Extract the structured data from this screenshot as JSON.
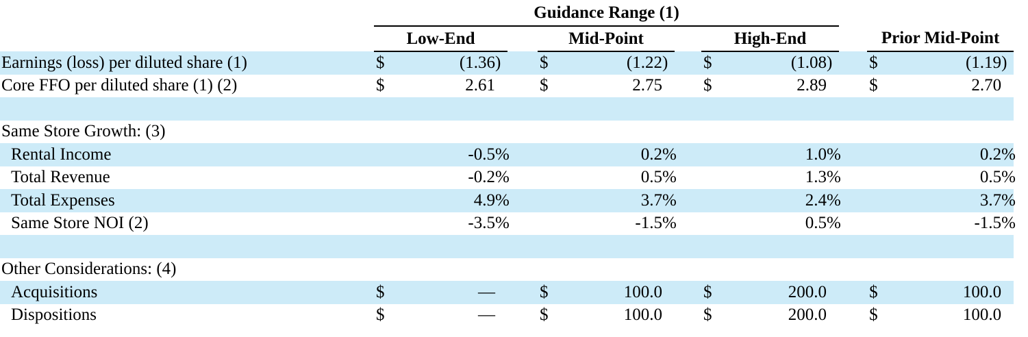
{
  "colors": {
    "row_shade": "#CDEBF8",
    "text": "#000000",
    "rule": "#000000"
  },
  "table": {
    "header": {
      "group_title": "Guidance Range (1)",
      "columns": [
        "Low-End",
        "Mid-Point",
        "High-End",
        "Prior Mid-Point"
      ]
    },
    "rows": [
      {
        "label": "Earnings (loss) per diluted share (1)",
        "indent": false,
        "shaded": true,
        "cells": [
          {
            "sym": "$",
            "num": "(1.36",
            "suf": ")"
          },
          {
            "sym": "$",
            "num": "(1.22",
            "suf": ")"
          },
          {
            "sym": "$",
            "num": "(1.08",
            "suf": ")"
          },
          {
            "sym": "$",
            "num": "(1.19",
            "suf": ")"
          }
        ]
      },
      {
        "label": "Core FFO per diluted share (1) (2)",
        "indent": false,
        "shaded": false,
        "cells": [
          {
            "sym": "$",
            "num": "2.61",
            "suf": ""
          },
          {
            "sym": "$",
            "num": "2.75",
            "suf": ""
          },
          {
            "sym": "$",
            "num": "2.89",
            "suf": ""
          },
          {
            "sym": "$",
            "num": "2.70",
            "suf": ""
          }
        ]
      },
      {
        "label": "",
        "indent": false,
        "shaded": true,
        "cells": null
      },
      {
        "label": "Same Store Growth: (3)",
        "indent": false,
        "shaded": false,
        "cells": null
      },
      {
        "label": "Rental Income",
        "indent": true,
        "shaded": true,
        "cells": [
          {
            "sym": "",
            "num": "-0.5",
            "suf": "%"
          },
          {
            "sym": "",
            "num": "0.2",
            "suf": "%"
          },
          {
            "sym": "",
            "num": "1.0",
            "suf": "%"
          },
          {
            "sym": "",
            "num": "0.2",
            "suf": "%"
          }
        ]
      },
      {
        "label": "Total Revenue",
        "indent": true,
        "shaded": false,
        "cells": [
          {
            "sym": "",
            "num": "-0.2",
            "suf": "%"
          },
          {
            "sym": "",
            "num": "0.5",
            "suf": "%"
          },
          {
            "sym": "",
            "num": "1.3",
            "suf": "%"
          },
          {
            "sym": "",
            "num": "0.5",
            "suf": "%"
          }
        ]
      },
      {
        "label": "Total Expenses",
        "indent": true,
        "shaded": true,
        "cells": [
          {
            "sym": "",
            "num": "4.9",
            "suf": "%"
          },
          {
            "sym": "",
            "num": "3.7",
            "suf": "%"
          },
          {
            "sym": "",
            "num": "2.4",
            "suf": "%"
          },
          {
            "sym": "",
            "num": "3.7",
            "suf": "%"
          }
        ]
      },
      {
        "label": "Same Store NOI (2)",
        "indent": true,
        "shaded": false,
        "cells": [
          {
            "sym": "",
            "num": "-3.5",
            "suf": "%"
          },
          {
            "sym": "",
            "num": "-1.5",
            "suf": "%"
          },
          {
            "sym": "",
            "num": "0.5",
            "suf": "%"
          },
          {
            "sym": "",
            "num": "-1.5",
            "suf": "%"
          }
        ]
      },
      {
        "label": "",
        "indent": false,
        "shaded": true,
        "cells": null
      },
      {
        "label": "Other Considerations: (4)",
        "indent": false,
        "shaded": false,
        "cells": null
      },
      {
        "label": "Acquisitions",
        "indent": true,
        "shaded": true,
        "cells": [
          {
            "sym": "$",
            "num": "—",
            "suf": ""
          },
          {
            "sym": "$",
            "num": "100.0",
            "suf": ""
          },
          {
            "sym": "$",
            "num": "200.0",
            "suf": ""
          },
          {
            "sym": "$",
            "num": "100.0",
            "suf": ""
          }
        ]
      },
      {
        "label": "Dispositions",
        "indent": true,
        "shaded": false,
        "cells": [
          {
            "sym": "$",
            "num": "—",
            "suf": ""
          },
          {
            "sym": "$",
            "num": "100.0",
            "suf": ""
          },
          {
            "sym": "$",
            "num": "200.0",
            "suf": ""
          },
          {
            "sym": "$",
            "num": "100.0",
            "suf": ""
          }
        ]
      }
    ]
  }
}
